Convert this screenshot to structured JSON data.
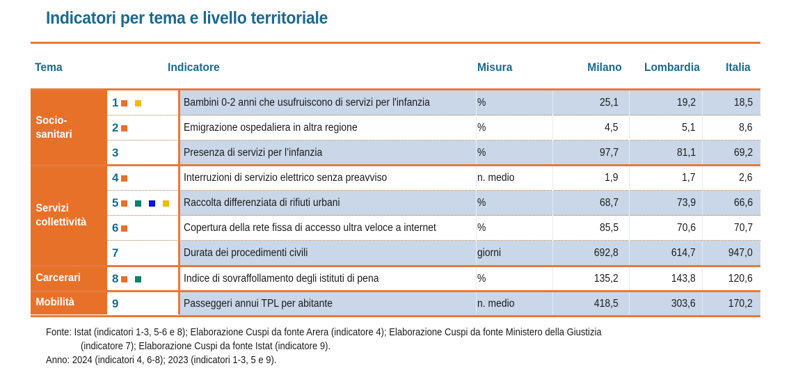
{
  "title": "Indicatori per tema e livello territoriale",
  "colors": {
    "accent_orange": "#e8712a",
    "rule_orange": "#e8793a",
    "header_blue": "#1a6a8f",
    "row_shade": "#c9d7e8",
    "square_orange": "#e8712a",
    "square_green": "#13806a",
    "square_blue": "#0a14d8",
    "square_yellow": "#f2b90f"
  },
  "headers": {
    "tema": "Tema",
    "indicatore": "Indicatore",
    "misura": "Misura",
    "milano": "Milano",
    "lombardia": "Lombardia",
    "italia": "Italia"
  },
  "themes": [
    {
      "label": "Socio-sanitari",
      "rows": 3
    },
    {
      "label": "Servizi collettività",
      "rows": 4
    },
    {
      "label": "Carcerari",
      "rows": 1
    },
    {
      "label": "Mobilità",
      "rows": 1
    }
  ],
  "rows": [
    {
      "num": "1",
      "squares": [
        "orange",
        "yellow"
      ],
      "indicator": "Bambini 0-2 anni che usufruiscono di servizi per l'infanzia",
      "misura": "%",
      "milano": "25,1",
      "lombardia": "19,2",
      "italia": "18,5"
    },
    {
      "num": "2",
      "squares": [
        "orange"
      ],
      "indicator": "Emigrazione ospedaliera in altra regione",
      "misura": "%",
      "milano": "4,5",
      "lombardia": "5,1",
      "italia": "8,6"
    },
    {
      "num": "3",
      "squares": [],
      "indicator": "Presenza di servizi per l’infanzia",
      "misura": "%",
      "milano": "97,7",
      "lombardia": "81,1",
      "italia": "69,2"
    },
    {
      "num": "4",
      "squares": [
        "orange"
      ],
      "indicator": "Interruzioni di servizio elettrico senza preavviso",
      "misura": "n. medio",
      "milano": "1,9",
      "lombardia": "1,7",
      "italia": "2,6"
    },
    {
      "num": "5",
      "squares": [
        "orange",
        "green",
        "blue",
        "yellow"
      ],
      "indicator": "Raccolta differenziata di rifiuti urbani",
      "misura": "%",
      "milano": "68,7",
      "lombardia": "73,9",
      "italia": "66,6"
    },
    {
      "num": "6",
      "squares": [
        "orange"
      ],
      "indicator": "Copertura della rete fissa di accesso ultra veloce a internet",
      "misura": "%",
      "milano": "85,5",
      "lombardia": "70,6",
      "italia": "70,7"
    },
    {
      "num": "7",
      "squares": [],
      "indicator": "Durata dei procedimenti civili",
      "misura": "giorni",
      "milano": "692,8",
      "lombardia": "614,7",
      "italia": "947,0"
    },
    {
      "num": "8",
      "squares": [
        "orange",
        "green"
      ],
      "indicator": "Indice di sovraffollamento degli istituti di pena",
      "misura": "%",
      "milano": "135,2",
      "lombardia": "143,8",
      "italia": "120,6"
    },
    {
      "num": "9",
      "squares": [],
      "indicator": "Passeggeri annui TPL per abitante",
      "misura": "n. medio",
      "milano": "418,5",
      "lombardia": "303,6",
      "italia": "170,2"
    }
  ],
  "footer": {
    "fonte_line1": "Fonte: Istat (indicatori 1-3, 5-6 e 8); Elaborazione Cuspi da fonte Arera (indicatore 4); Elaborazione Cuspi da fonte Ministero della Giustizia",
    "fonte_line2": "(indicatore 7); Elaborazione Cuspi da fonte Istat (indicatore 9).",
    "anno": "Anno: 2024 (indicatori 4, 6-8); 2023 (indicatori 1-3, 5 e 9)."
  }
}
